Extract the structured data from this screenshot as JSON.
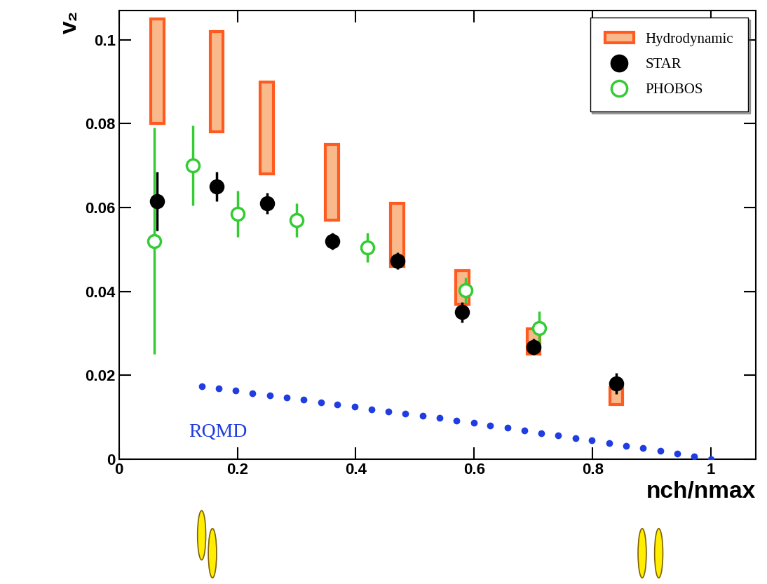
{
  "chart_data": {
    "type": "scatter",
    "x_label": "nch/nmax",
    "y_label": "v₂",
    "xlim": [
      0,
      1.075
    ],
    "ylim": [
      0,
      0.107
    ],
    "xticks": [
      0,
      0.2,
      0.4,
      0.6,
      0.8,
      1
    ],
    "yticks": [
      0,
      0.02,
      0.04,
      0.06,
      0.08,
      0.1
    ],
    "legend": "upper right",
    "series": [
      {
        "name": "Hydrodynamic",
        "type": "range",
        "color": "#ff5a1f",
        "x": [
          0.065,
          0.165,
          0.25,
          0.36,
          0.47,
          0.58,
          0.7,
          0.84
        ],
        "low": [
          0.08,
          0.078,
          0.068,
          0.057,
          0.046,
          0.037,
          0.025,
          0.013
        ],
        "high": [
          0.105,
          0.102,
          0.09,
          0.075,
          0.061,
          0.045,
          0.031,
          0.017
        ]
      },
      {
        "name": "STAR",
        "type": "errorbar",
        "color": "#000000",
        "marker": "filled_circle",
        "x": [
          0.065,
          0.165,
          0.25,
          0.36,
          0.47,
          0.58,
          0.7,
          0.84
        ],
        "values": [
          0.0615,
          0.065,
          0.061,
          0.052,
          0.0473,
          0.035,
          0.0268,
          0.018
        ],
        "errors": [
          0.007,
          0.0035,
          0.0025,
          0.002,
          0.002,
          0.0025,
          0.002,
          0.0025
        ]
      },
      {
        "name": "PHOBOS",
        "type": "errorbar",
        "color": "#33cc33",
        "marker": "open_circle",
        "x": [
          0.06,
          0.125,
          0.2,
          0.3,
          0.42,
          0.585,
          0.71
        ],
        "values": [
          0.052,
          0.07,
          0.0585,
          0.057,
          0.0505,
          0.0402,
          0.0312
        ],
        "errors": [
          0.027,
          0.0095,
          0.0055,
          0.004,
          0.0035,
          0.003,
          0.004
        ]
      },
      {
        "name": "RQMD",
        "type": "scatter",
        "color": "#1f3de0",
        "marker": "dot",
        "x": [
          0.14,
          0.169,
          0.197,
          0.226,
          0.255,
          0.283,
          0.312,
          0.341,
          0.369,
          0.398,
          0.427,
          0.455,
          0.484,
          0.513,
          0.541,
          0.57,
          0.599,
          0.627,
          0.656,
          0.685,
          0.713,
          0.742,
          0.771,
          0.799,
          0.828,
          0.857,
          0.885,
          0.914,
          0.943,
          0.971,
          1.0
        ],
        "values": [
          0.0173,
          0.0168,
          0.0163,
          0.0157,
          0.0152,
          0.0146,
          0.0141,
          0.0135,
          0.013,
          0.0125,
          0.0119,
          0.0114,
          0.0109,
          0.0103,
          0.0098,
          0.0092,
          0.0086,
          0.008,
          0.0074,
          0.0068,
          0.0062,
          0.0056,
          0.005,
          0.0044,
          0.0038,
          0.0032,
          0.0026,
          0.0019,
          0.0013,
          0.0007,
          0.0
        ]
      }
    ]
  }
}
